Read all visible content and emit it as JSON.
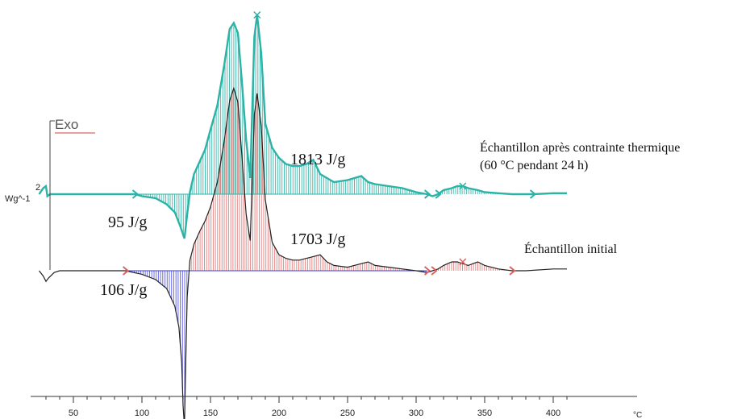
{
  "chart_data": {
    "type": "line",
    "title": "",
    "exo_label": "Exo",
    "y_scale_value": "2",
    "ylabel": "Wg^-1",
    "xlabel": "°C",
    "x_ticks": [
      50,
      100,
      150,
      200,
      250,
      300,
      350,
      400
    ],
    "xlim": [
      25,
      410
    ],
    "grid": false,
    "colors": {
      "series_a": "#2ab3a6",
      "series_b_exo_fill": "#e06060",
      "series_b_endo_fill": "#3a3ad8",
      "series_b_line": "#222222",
      "axis": "#333333"
    },
    "series": [
      {
        "name": "Échantillon après contrainte thermique",
        "name_detail": "(60 °C pendant 24 h)",
        "baseline": 0,
        "x": [
          25,
          28,
          30,
          31,
          33,
          40,
          60,
          80,
          95,
          100,
          110,
          118,
          124,
          128,
          131,
          133,
          135,
          138,
          142,
          146,
          150,
          155,
          160,
          164,
          167,
          170,
          173,
          176,
          179,
          182,
          184,
          187,
          190,
          195,
          200,
          205,
          210,
          215,
          220,
          225,
          230,
          235,
          240,
          250,
          260,
          265,
          270,
          280,
          290,
          300,
          308,
          312,
          316,
          320,
          326,
          330,
          334,
          338,
          345,
          350,
          360,
          370,
          380,
          385,
          400,
          410
        ],
        "y": [
          0,
          0.3,
          0.4,
          -0.1,
          0,
          0,
          0,
          0,
          0,
          -0.1,
          -0.2,
          -0.5,
          -0.9,
          -1.6,
          -2.2,
          -1.0,
          0.1,
          1.0,
          1.6,
          2.2,
          3.2,
          4.4,
          6.4,
          8.2,
          8.5,
          8.0,
          5.5,
          2.7,
          0.8,
          7.8,
          8.9,
          7.0,
          3.5,
          2.3,
          1.8,
          1.5,
          1.4,
          1.4,
          1.5,
          1.7,
          1.0,
          0.8,
          0.6,
          0.7,
          0.9,
          0.6,
          0.5,
          0.4,
          0.3,
          0.1,
          0,
          -0.1,
          0,
          0.2,
          0.3,
          0.4,
          0.4,
          0.3,
          0.2,
          0.1,
          0.05,
          0,
          0,
          0,
          0.05,
          0.05
        ],
        "peak_exo_label": "1813 J/g",
        "peak_endo_label": "95 J/g"
      },
      {
        "name": "Échantillon initial",
        "baseline": 0,
        "x": [
          25,
          28,
          30,
          32,
          36,
          40,
          60,
          80,
          88,
          100,
          110,
          118,
          124,
          127,
          129,
          130,
          131,
          132,
          133,
          135,
          138,
          142,
          146,
          150,
          155,
          160,
          164,
          167,
          170,
          173,
          176,
          179,
          182,
          184,
          187,
          190,
          195,
          200,
          205,
          210,
          215,
          220,
          225,
          230,
          235,
          240,
          250,
          260,
          265,
          270,
          280,
          290,
          300,
          308,
          312,
          316,
          320,
          326,
          330,
          334,
          338,
          345,
          350,
          360,
          370,
          380,
          400,
          410
        ],
        "y": [
          0,
          -0.3,
          -0.6,
          -0.4,
          -0.1,
          0,
          0,
          0,
          0,
          -0.2,
          -0.5,
          -1.0,
          -2.0,
          -3.2,
          -5.2,
          -7.6,
          -8.8,
          -5.0,
          -1.5,
          0.6,
          1.5,
          2.2,
          2.8,
          3.6,
          5.0,
          7.3,
          9.6,
          10.3,
          9.5,
          6.4,
          3.2,
          1.7,
          8.8,
          10.0,
          8.2,
          4.0,
          1.6,
          0.9,
          0.7,
          0.6,
          0.6,
          0.7,
          0.8,
          0.9,
          0.5,
          0.3,
          0.2,
          0.4,
          0.5,
          0.3,
          0.2,
          0.1,
          0,
          -0.1,
          0,
          0.1,
          0.3,
          0.5,
          0.5,
          0.4,
          0.3,
          0.5,
          0.3,
          0.1,
          0,
          0,
          0.1,
          0.1
        ],
        "peak_exo_label": "1703 J/g",
        "peak_endo_label": "106 J/g"
      }
    ]
  }
}
